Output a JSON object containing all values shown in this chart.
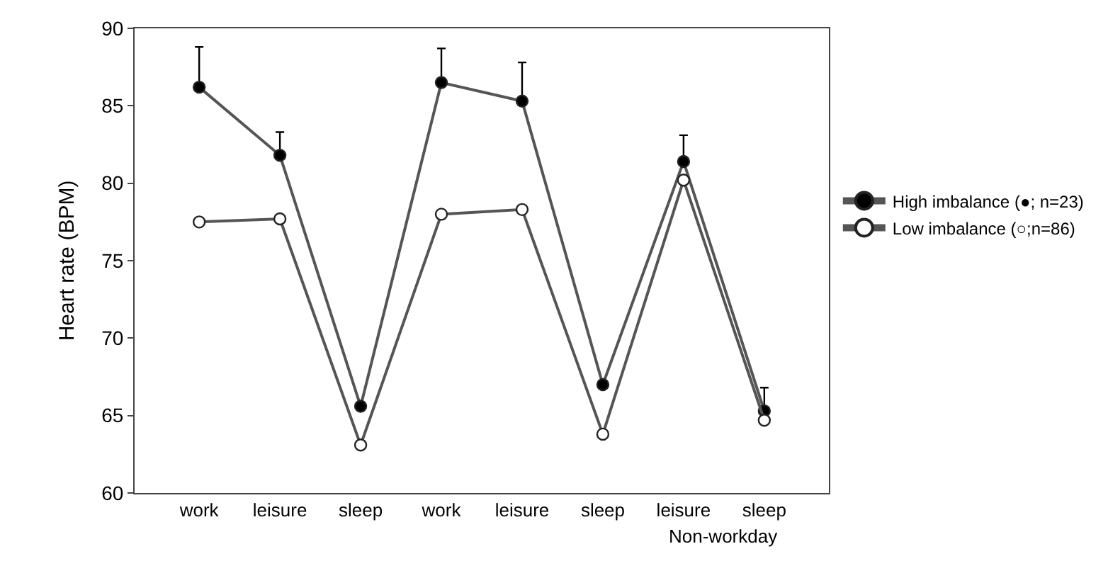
{
  "chart_data": {
    "type": "line",
    "ylabel": "Heart rate (BPM)",
    "categories": [
      "work",
      "leisure",
      "sleep",
      "work",
      "leisure",
      "sleep",
      "leisure",
      "sleep"
    ],
    "series": [
      {
        "name": "High imbalance (●; n=23)",
        "color": "#000000",
        "values": [
          86.2,
          81.8,
          65.6,
          86.5,
          85.3,
          67.0,
          81.4,
          65.3
        ],
        "errors": [
          [
            86.2,
            88.8
          ],
          [
            81.8,
            83.3
          ],
          null,
          [
            86.5,
            88.7
          ],
          [
            85.3,
            87.8
          ],
          null,
          [
            81.4,
            83.1
          ],
          [
            65.3,
            66.8
          ]
        ]
      },
      {
        "name": "Low imbalance (○;n=86)",
        "color": "#ffffff",
        "values": [
          77.5,
          77.7,
          63.1,
          78.0,
          78.3,
          63.8,
          80.2,
          64.7
        ]
      }
    ],
    "annotations": [
      "Non-workday"
    ],
    "ylim": [
      60,
      90
    ],
    "yticks": [
      60,
      65,
      70,
      75,
      80,
      85,
      90
    ],
    "legend": "right",
    "marker": "circle"
  }
}
